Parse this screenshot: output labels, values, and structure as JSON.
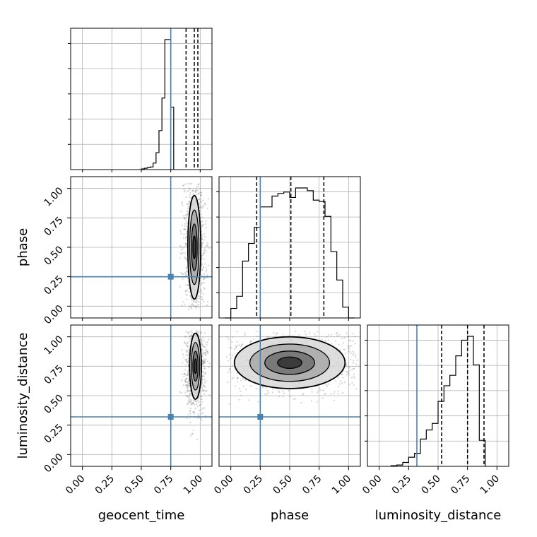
{
  "chart_data": {
    "type": "corner",
    "parameters": [
      "geocent_time",
      "phase",
      "luminosity_distance"
    ],
    "axis_labels": {
      "geocent_time": "geocent_time",
      "phase": "phase",
      "luminosity_distance": "luminosity_distance"
    },
    "tick_labels": [
      "0.00",
      "0.25",
      "0.50",
      "0.75",
      "1.00"
    ],
    "tick_values": [
      0,
      0.25,
      0.5,
      0.75,
      1.0
    ],
    "axis_range": [
      -0.1,
      1.1
    ],
    "grid": true,
    "colors": {
      "truth": "#4682b4",
      "hist": "#000000",
      "quantile": "#000000",
      "scatter": "#888888",
      "contour": "#000000"
    },
    "truths": {
      "geocent_time": 0.75,
      "phase": 0.25,
      "luminosity_distance": 0.32
    },
    "quantiles": {
      "geocent_time": [
        0.88,
        0.95,
        0.98
      ],
      "phase": [
        0.22,
        0.51,
        0.79
      ],
      "luminosity_distance": [
        0.53,
        0.75,
        0.89
      ]
    },
    "histograms": {
      "geocent_time": {
        "bin_start": 0.5,
        "bin_width": 0.025,
        "counts": [
          0.5,
          1,
          1.5,
          2,
          5,
          13,
          30,
          55,
          100,
          100,
          48
        ]
      },
      "phase": {
        "bin_start": -0.05,
        "bin_width": 0.05,
        "counts": [
          0,
          7,
          16,
          42,
          55,
          67,
          82,
          82,
          90,
          92,
          93,
          89,
          96,
          96,
          94,
          87,
          86,
          75,
          49,
          28,
          8,
          0
        ]
      },
      "luminosity_distance": {
        "bin_start": 0.1,
        "bin_width": 0.05,
        "counts": [
          0.5,
          1,
          3,
          7,
          10,
          21,
          28,
          33,
          50,
          62,
          70,
          85,
          97,
          100,
          78,
          20
        ]
      }
    },
    "scatter_seed": 7,
    "contour_levels": [
      {
        "param": [
          "geocent_time",
          "phase"
        ],
        "center": [
          0.95,
          0.5
        ],
        "radius": [
          0.055,
          0.44
        ]
      },
      {
        "param": [
          "geocent_time",
          "luminosity_distance"
        ],
        "center": [
          0.96,
          0.75
        ],
        "radius": [
          0.05,
          0.28
        ]
      },
      {
        "param": [
          "phase",
          "luminosity_distance"
        ],
        "center": [
          0.5,
          0.78
        ],
        "radius": [
          0.47,
          0.22
        ]
      }
    ]
  }
}
